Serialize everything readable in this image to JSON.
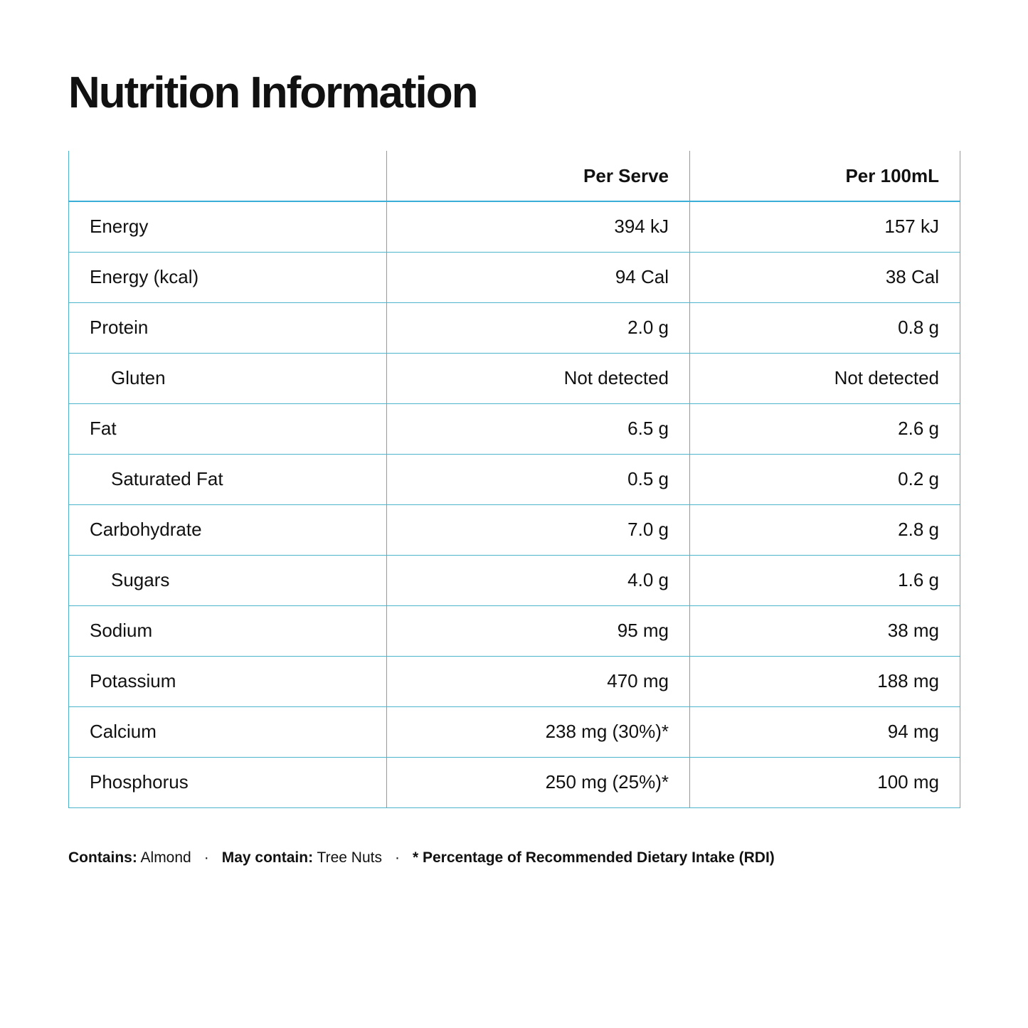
{
  "header": {
    "title": "Nutrition Information"
  },
  "table": {
    "columns": {
      "per_serve": "Per Serve",
      "per_100ml": "Per 100mL"
    },
    "rows": [
      {
        "label": "Energy",
        "per_serve": "394 kJ",
        "per_100ml": "157 kJ"
      },
      {
        "label": "Energy (kcal)",
        "per_serve": "94 Cal",
        "per_100ml": "38 Cal"
      },
      {
        "label": "Protein",
        "per_serve": "2.0 g",
        "per_100ml": "0.8 g"
      },
      {
        "label": "Gluten",
        "per_serve": "Not detected",
        "per_100ml": "Not detected",
        "indent": true
      },
      {
        "label": "Fat",
        "per_serve": "6.5 g",
        "per_100ml": "2.6 g"
      },
      {
        "label": "Saturated Fat",
        "per_serve": "0.5 g",
        "per_100ml": "0.2 g",
        "indent": true
      },
      {
        "label": "Carbohydrate",
        "per_serve": "7.0 g",
        "per_100ml": "2.8 g"
      },
      {
        "label": "Sugars",
        "per_serve": "4.0 g",
        "per_100ml": "1.6 g",
        "indent": true
      },
      {
        "label": "Sodium",
        "per_serve": "95 mg",
        "per_100ml": "38 mg"
      },
      {
        "label": "Potassium",
        "per_serve": "470 mg",
        "per_100ml": "188 mg"
      },
      {
        "label": "Calcium",
        "per_serve": "238 mg (30%)*",
        "per_100ml": "94 mg"
      },
      {
        "label": "Phosphorus",
        "per_serve": "250 mg (25%)*",
        "per_100ml": "100 mg"
      }
    ]
  },
  "footer": {
    "contains": {
      "label": "Contains:",
      "value": "Almond"
    },
    "may_contain": {
      "label": "May contain:",
      "value": "Tree Nuts"
    },
    "separator": "·",
    "note": "* Percentage of Recommended Dietary Intake (RDI)"
  }
}
